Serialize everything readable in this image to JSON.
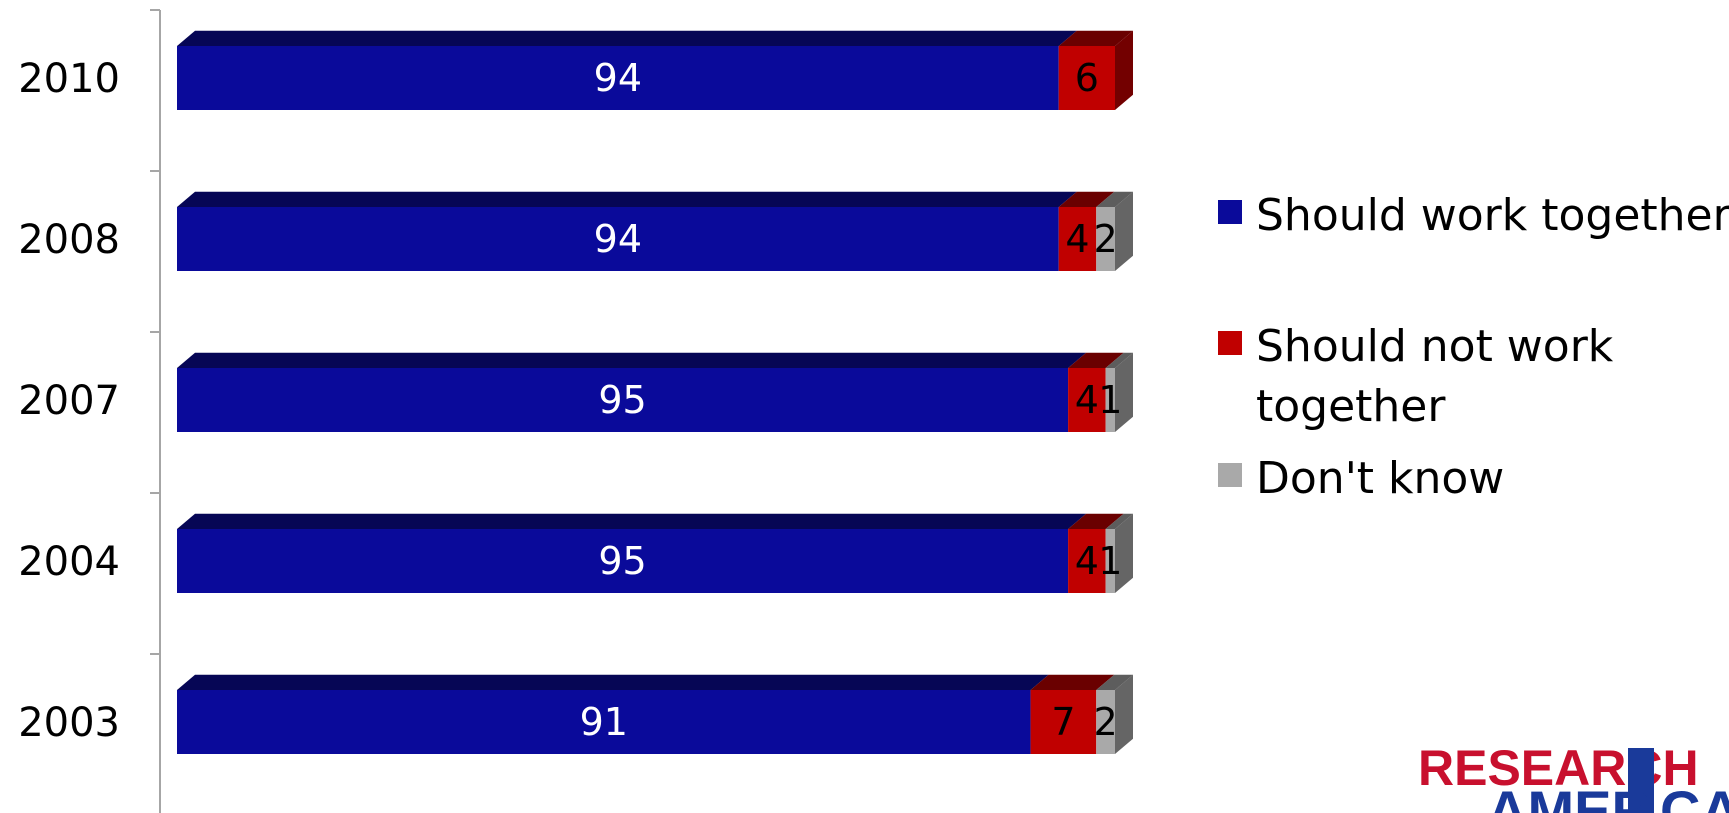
{
  "chart_data": {
    "type": "bar",
    "orientation": "horizontal",
    "stacked": true,
    "categories": [
      "2010",
      "2008",
      "2007",
      "2004",
      "2003"
    ],
    "series": [
      {
        "name": "Should work together",
        "color": "#0a0a9a",
        "values": [
          94,
          94,
          95,
          95,
          91
        ]
      },
      {
        "name": "Should not work together",
        "color": "#c00000",
        "values": [
          6,
          4,
          4,
          4,
          7
        ]
      },
      {
        "name": "Don't know",
        "color": "#a9a9a9",
        "values": [
          0,
          2,
          1,
          1,
          2
        ]
      }
    ],
    "data_labels": [
      [
        "94",
        "94",
        "95",
        "95",
        "91"
      ],
      [
        "6",
        "4",
        "4",
        "4",
        "7"
      ],
      [
        "",
        "2",
        "1",
        "1",
        "2"
      ]
    ],
    "xlim": [
      0,
      100
    ],
    "legend_position": "right",
    "legend_lines": [
      [
        "Should work together"
      ],
      [
        "Should not work",
        "together"
      ],
      [
        "Don't know"
      ]
    ],
    "grid": false
  },
  "logo": {
    "text": "RESEARCH AMERICA",
    "color": "#c8102e",
    "accent": "#1a3a9a"
  }
}
